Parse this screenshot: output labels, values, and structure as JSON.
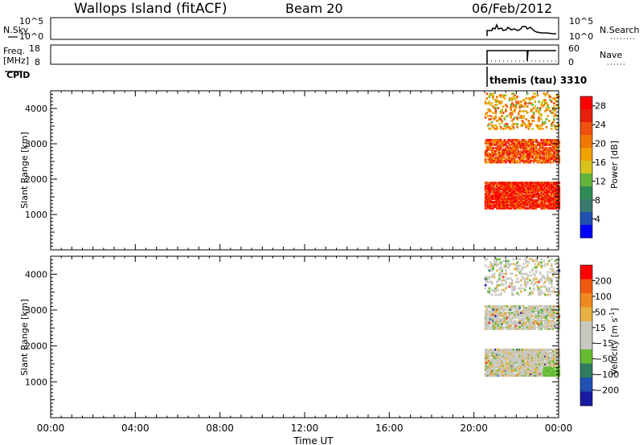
{
  "header": {
    "station": "Wallops Island (fitACF)",
    "beam": "Beam 20",
    "date": "06/Feb/2012"
  },
  "noise_panel": {
    "left_label": "N.Sky",
    "right_label": "N.Search",
    "left_ticks": [
      "10^5",
      "10^0"
    ],
    "right_ticks": [
      "10^5",
      "10^0"
    ]
  },
  "freq_panel": {
    "left_label_1": "Freq.",
    "left_label_2": "[MHz]",
    "left_ticks": [
      "18",
      "8"
    ],
    "right_label": "Nave",
    "right_ticks": [
      "60",
      "0"
    ]
  },
  "cpid": {
    "label": "CPID",
    "value": "themis (tau) 3310"
  },
  "colors": {
    "power_scale": [
      "#0000ff",
      "#2050b0",
      "#3a7a6e",
      "#2e8b57",
      "#64b43c",
      "#d8c21e",
      "#f0a000",
      "#f07800",
      "#f05010",
      "#e82010",
      "#ff0000"
    ],
    "velocity_scale": [
      "#1a1aa0",
      "#2050b0",
      "#2e7d5e",
      "#66bb33",
      "#c8c8c0",
      "#c8c8c0",
      "#e8b040",
      "#f08a20",
      "#f05a10",
      "#ff0000"
    ]
  },
  "chart_data": [
    {
      "type": "heatmap",
      "panel": "power",
      "ylabel": "Slant Range [km]",
      "ylim": [
        0,
        4500
      ],
      "yticks": [
        "1000",
        "2000",
        "3000",
        "4000"
      ],
      "xlim": [
        0,
        24
      ],
      "colorbar": {
        "label": "Power [dB]",
        "ticks": [
          "28",
          "24",
          "20",
          "16",
          "12",
          "8",
          "4"
        ],
        "range": [
          0,
          30
        ]
      },
      "data_extent_hours": [
        20.5,
        24
      ],
      "bands": [
        {
          "range_km": [
            1150,
            1900
          ],
          "power_db": 24
        },
        {
          "range_km": [
            2450,
            3100
          ],
          "power_db": 22
        },
        {
          "range_km": [
            3400,
            4400
          ],
          "power_db": 18
        }
      ]
    },
    {
      "type": "heatmap",
      "panel": "velocity",
      "ylabel": "Slant Range [km]",
      "ylim": [
        0,
        4500
      ],
      "yticks": [
        "1000",
        "2000",
        "3000",
        "4000"
      ],
      "xlim": [
        0,
        24
      ],
      "colorbar": {
        "label": "Velocity [m s^-1]",
        "ticks": [
          "200",
          "100",
          "50",
          "15",
          "-15",
          "-50",
          "-100",
          "-200"
        ],
        "range": [
          -250,
          250
        ]
      },
      "data_extent_hours": [
        20.5,
        24
      ],
      "bands": [
        {
          "range_km": [
            1150,
            1900
          ],
          "velocity": 0
        },
        {
          "range_km": [
            2450,
            3100
          ],
          "velocity": -20
        },
        {
          "range_km": [
            3400,
            4400
          ],
          "velocity": -10
        }
      ]
    }
  ],
  "xaxis": {
    "label": "Time UT",
    "ticks": [
      "00:00",
      "04:00",
      "08:00",
      "12:00",
      "16:00",
      "20:00",
      "00:00"
    ]
  }
}
